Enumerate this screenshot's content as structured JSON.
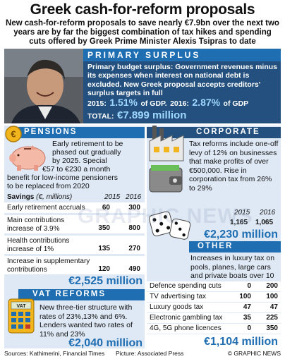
{
  "title": "Greek cash-for-reform proposals",
  "subtitle": "New cash-for-reform proposals to save nearly €7.9bn over the next two years are by far the biggest combination of tax hikes and spending cuts offered by Greek Prime Minister Alexis Tsipras to date",
  "surplus": {
    "heading": "PRIMARY SURPLUS",
    "text": "Primary budget surplus: Government revenues minus its expenses when interest on national debt is excluded. New Greek proposal accepts creditors' surplus targets in full",
    "y2015_label": "2015:",
    "y2015_value": "1.51%",
    "y2015_suffix": "of GDP.",
    "y2016_label": "2016:",
    "y2016_value": "2.87%",
    "y2016_suffix": "of GDP",
    "total_label": "TOTAL:",
    "total_value": "€7.899 million"
  },
  "pensions": {
    "heading": "PENSIONS",
    "text1": "Early retirement to be",
    "text2": "phased out gradually",
    "text3": "by 2025. Special",
    "text4": "€57 to €230 a month",
    "text5": "benefit for low-income pensioners",
    "text6": "to be replaced from 2020",
    "savings_label": "Savings",
    "savings_unit": "(€, millions)",
    "year1": "2015",
    "year2": "2016",
    "rows": [
      {
        "label": "Early retirement accruals",
        "v2015": "60",
        "v2016": "300"
      },
      {
        "label": "Main contributions increase of 3.9%",
        "v2015": "350",
        "v2016": "800"
      },
      {
        "label": "Health contributions increase of 1%",
        "v2015": "135",
        "v2016": "270"
      },
      {
        "label": "Increase in supplementary contributions",
        "v2015": "120",
        "v2016": "490"
      }
    ],
    "total": "€2,525 million"
  },
  "vat": {
    "heading": "VAT REFORMS",
    "text": "New three-tier structure with rates of 23%,13% and 6%. Lenders wanted two rates of 11% and 23%",
    "total": "€2,040 million"
  },
  "corporate": {
    "heading": "CORPORATE",
    "text": "Tax reforms include one-off levy of 12% on businesses that make profits of over €500,000. Rise in corporation tax from 26% to 29%",
    "year1": "2015",
    "year2": "2016",
    "v2015": "1,165",
    "v2016": "1,065",
    "total": "€2,230 million"
  },
  "other": {
    "heading": "OTHER",
    "text": "Increases in luxury tax on pools, planes, large cars and private boats over 10 metres",
    "rows": [
      {
        "label": "Defence spending cuts",
        "v2015": "0",
        "v2016": "200"
      },
      {
        "label": "TV advertising tax",
        "v2015": "100",
        "v2016": "100"
      },
      {
        "label": "Luxury goods tax",
        "v2015": "47",
        "v2016": "47"
      },
      {
        "label": "Electronic gambling tax",
        "v2015": "35",
        "v2016": "225"
      },
      {
        "label": "4G, 5G phone licences",
        "v2015": "0",
        "v2016": "350"
      }
    ],
    "total": "€1,104 million"
  },
  "footer": {
    "sources": "Sources: Kathimerini, Financial Times",
    "picture": "Picture: Associated Press",
    "credit": "© GRAPHIC NEWS"
  },
  "watermark": "GRAPHIC NEWS",
  "colors": {
    "accent": "#1f6eb2",
    "dark_blue": "#23507e",
    "light_panel": "#dfe9f5",
    "highlight": "#9fd8ff"
  }
}
